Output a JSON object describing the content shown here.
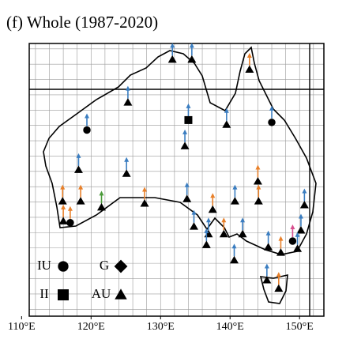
{
  "chart_data": {
    "type": "map",
    "title": "(f) Whole (1987-2020)",
    "xlim": [
      111.1,
      153.5
    ],
    "ylim": [
      -44.9,
      -9.3
    ],
    "xticks": [
      {
        "value": 110,
        "label": "110°E"
      },
      {
        "value": 120,
        "label": "120°E"
      },
      {
        "value": 130,
        "label": "130°E"
      },
      {
        "value": 140,
        "label": "140°E"
      },
      {
        "value": 150,
        "label": "150°E"
      }
    ],
    "grid_lon": [
      112,
      114,
      116,
      118,
      120,
      122,
      124,
      126,
      128,
      130,
      132,
      134,
      136,
      138,
      140,
      142,
      144,
      146,
      148,
      150,
      152
    ],
    "grid_lat": [
      -10,
      -12,
      -14,
      -16,
      -18,
      -20,
      -22,
      -24,
      -26,
      -28,
      -30,
      -32,
      -34,
      -36,
      -38,
      -40,
      -42,
      -44
    ],
    "legend": [
      {
        "name": "IU",
        "marker": "circle"
      },
      {
        "name": "G",
        "marker": "diamond"
      },
      {
        "name": "II",
        "marker": "square"
      },
      {
        "name": "AU",
        "marker": "triangle"
      }
    ],
    "stations": [
      {
        "lon": 131.7,
        "lat": -11.4,
        "marker": "triangle",
        "color": "#3a7dc0"
      },
      {
        "lon": 134.5,
        "lat": -11.4,
        "marker": "triangle",
        "color": "#3a7dc0"
      },
      {
        "lon": 142.8,
        "lat": -12.7,
        "marker": "triangle",
        "color": "#e8802a"
      },
      {
        "lon": 125.3,
        "lat": -17.0,
        "marker": "triangle",
        "color": "#3a7dc0"
      },
      {
        "lon": 139.5,
        "lat": -19.9,
        "marker": "triangle",
        "color": "#3a7dc0"
      },
      {
        "lon": 133.5,
        "lat": -22.7,
        "marker": "triangle",
        "color": "#3a7dc0"
      },
      {
        "lon": 125.1,
        "lat": -26.3,
        "marker": "triangle",
        "color": "#3a7dc0"
      },
      {
        "lon": 144.0,
        "lat": -27.3,
        "marker": "triangle",
        "color": "#e8802a"
      },
      {
        "lon": 118.2,
        "lat": -25.8,
        "marker": "triangle",
        "color": "#3a7dc0"
      },
      {
        "lon": 115.9,
        "lat": -29.9,
        "marker": "triangle",
        "color": "#e8802a"
      },
      {
        "lon": 118.5,
        "lat": -29.9,
        "marker": "triangle",
        "color": "#e8802a"
      },
      {
        "lon": 121.5,
        "lat": -30.7,
        "marker": "triangle",
        "color": "#4a9a3a"
      },
      {
        "lon": 127.7,
        "lat": -30.2,
        "marker": "triangle",
        "color": "#e8802a"
      },
      {
        "lon": 133.8,
        "lat": -29.6,
        "marker": "triangle",
        "color": "#3a7dc0"
      },
      {
        "lon": 137.5,
        "lat": -31.0,
        "marker": "triangle",
        "color": "#e8802a"
      },
      {
        "lon": 140.7,
        "lat": -29.9,
        "marker": "triangle",
        "color": "#3a7dc0"
      },
      {
        "lon": 144.1,
        "lat": -29.9,
        "marker": "triangle",
        "color": "#e8802a"
      },
      {
        "lon": 150.7,
        "lat": -30.4,
        "marker": "triangle",
        "color": "#3a7dc0"
      },
      {
        "lon": 116.0,
        "lat": -32.5,
        "marker": "triangle",
        "color": "#e8802a"
      },
      {
        "lon": 134.8,
        "lat": -33.2,
        "marker": "triangle",
        "color": "#3a7dc0"
      },
      {
        "lon": 136.9,
        "lat": -34.2,
        "marker": "triangle",
        "color": "#3a7dc0"
      },
      {
        "lon": 139.1,
        "lat": -34.2,
        "marker": "triangle",
        "color": "#e8802a"
      },
      {
        "lon": 141.8,
        "lat": -34.2,
        "marker": "triangle",
        "color": "#3a7dc0"
      },
      {
        "lon": 150.2,
        "lat": -33.7,
        "marker": "triangle",
        "color": "#3a7dc0"
      },
      {
        "lon": 136.6,
        "lat": -35.6,
        "marker": "triangle",
        "color": "#3a7dc0"
      },
      {
        "lon": 140.6,
        "lat": -37.6,
        "marker": "triangle",
        "color": "#3a7dc0"
      },
      {
        "lon": 145.5,
        "lat": -35.9,
        "marker": "triangle",
        "color": "#3a7dc0"
      },
      {
        "lon": 147.3,
        "lat": -36.6,
        "marker": "triangle",
        "color": "#e8802a"
      },
      {
        "lon": 149.7,
        "lat": -36.1,
        "marker": "triangle",
        "color": "#3a7dc0"
      },
      {
        "lon": 145.3,
        "lat": -40.2,
        "marker": "triangle",
        "color": "#3a7dc0"
      },
      {
        "lon": 147.0,
        "lat": -41.3,
        "marker": "triangle",
        "color": "#e8802a"
      },
      {
        "lon": 119.4,
        "lat": -20.6,
        "marker": "circle",
        "color": "#3a7dc0"
      },
      {
        "lon": 146.0,
        "lat": -19.6,
        "marker": "circle",
        "color": "#3a7dc0"
      },
      {
        "lon": 117.0,
        "lat": -32.7,
        "marker": "circle",
        "color": "#e8802a"
      },
      {
        "lon": 149.0,
        "lat": -35.1,
        "marker": "circle",
        "color": "#d84f8f"
      },
      {
        "lon": 134.0,
        "lat": -19.3,
        "marker": "square",
        "color": "#3a7dc0"
      }
    ]
  }
}
